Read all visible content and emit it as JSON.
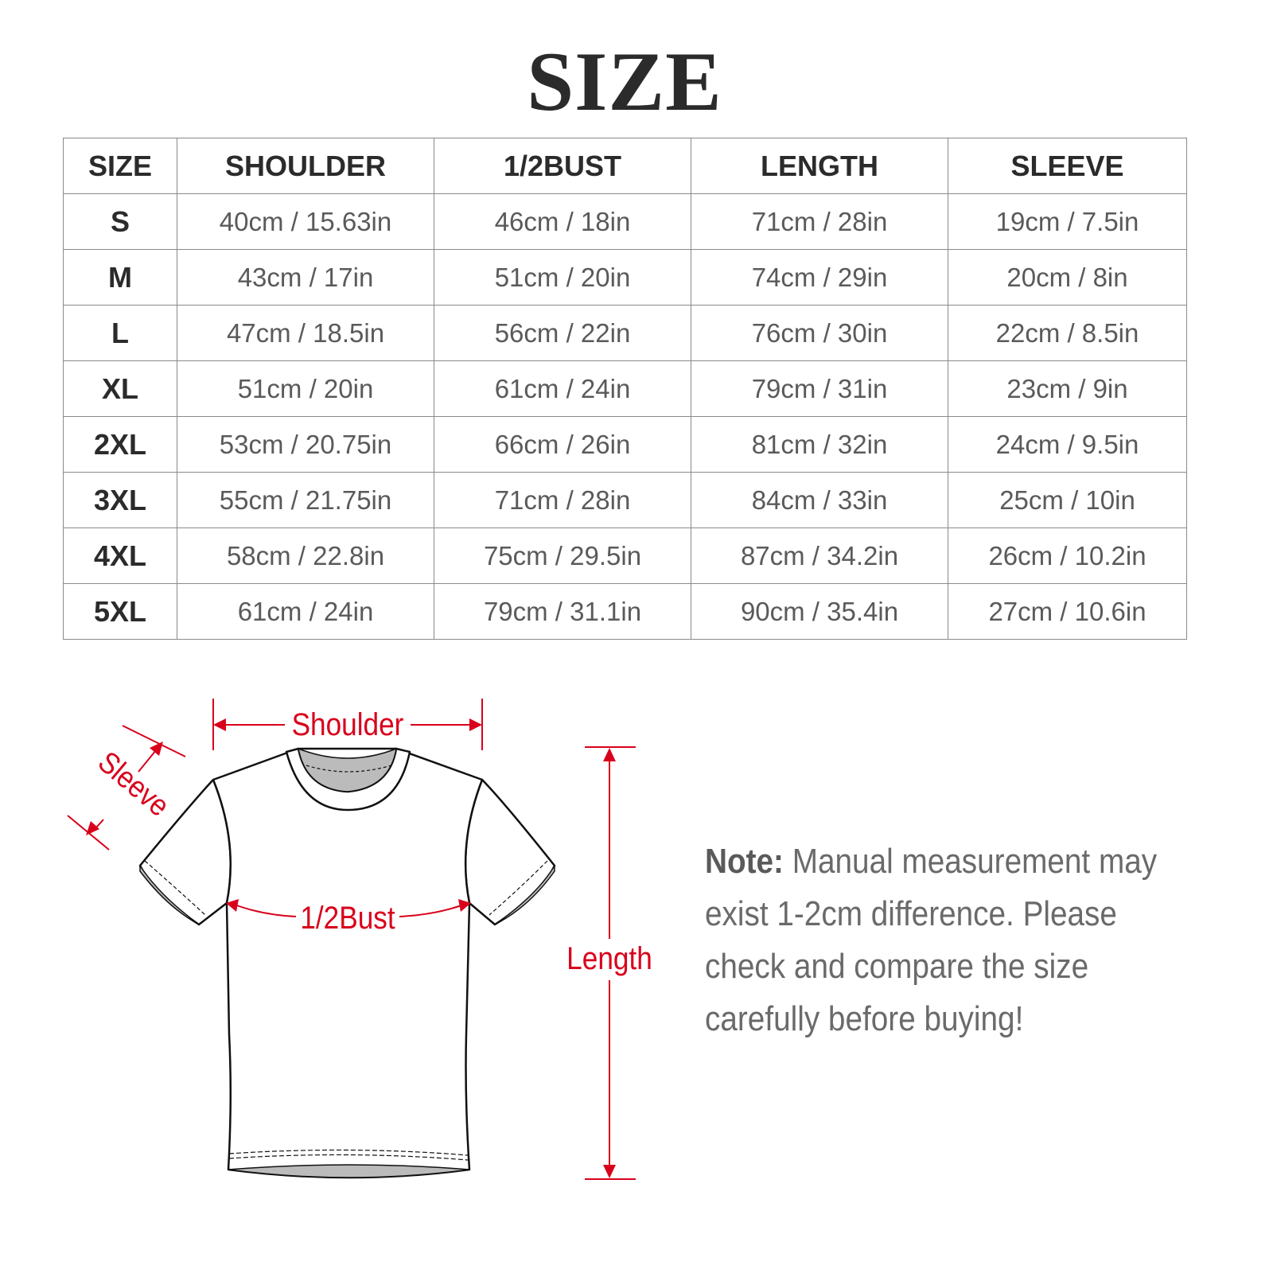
{
  "title": "SIZE",
  "table": {
    "headers": [
      "SIZE",
      "SHOULDER",
      "1/2BUST",
      "LENGTH",
      "SLEEVE"
    ],
    "rows": [
      [
        "S",
        "40cm / 15.63in",
        "46cm / 18in",
        "71cm / 28in",
        "19cm / 7.5in"
      ],
      [
        "M",
        "43cm / 17in",
        "51cm / 20in",
        "74cm / 29in",
        "20cm / 8in"
      ],
      [
        "L",
        "47cm / 18.5in",
        "56cm / 22in",
        "76cm / 30in",
        "22cm / 8.5in"
      ],
      [
        "XL",
        "51cm / 20in",
        "61cm / 24in",
        "79cm / 31in",
        "23cm / 9in"
      ],
      [
        "2XL",
        "53cm / 20.75in",
        "66cm / 26in",
        "81cm / 32in",
        "24cm / 9.5in"
      ],
      [
        "3XL",
        "55cm / 21.75in",
        "71cm / 28in",
        "84cm / 33in",
        "25cm / 10in"
      ],
      [
        "4XL",
        "58cm / 22.8in",
        "75cm / 29.5in",
        "87cm / 34.2in",
        "26cm / 10.2in"
      ],
      [
        "5XL",
        "61cm / 24in",
        "79cm / 31.1in",
        "90cm / 35.4in",
        "27cm / 10.6in"
      ]
    ]
  },
  "diagram": {
    "shoulder_label": "Shoulder",
    "sleeve_label": "Sleeve",
    "bust_label": "1/2Bust",
    "length_label": "Length",
    "accent_color": "#d9001b"
  },
  "note": {
    "label": "Note:",
    "text": "Manual measurement may exist 1-2cm difference. Please check and compare the size carefully before buying!"
  }
}
